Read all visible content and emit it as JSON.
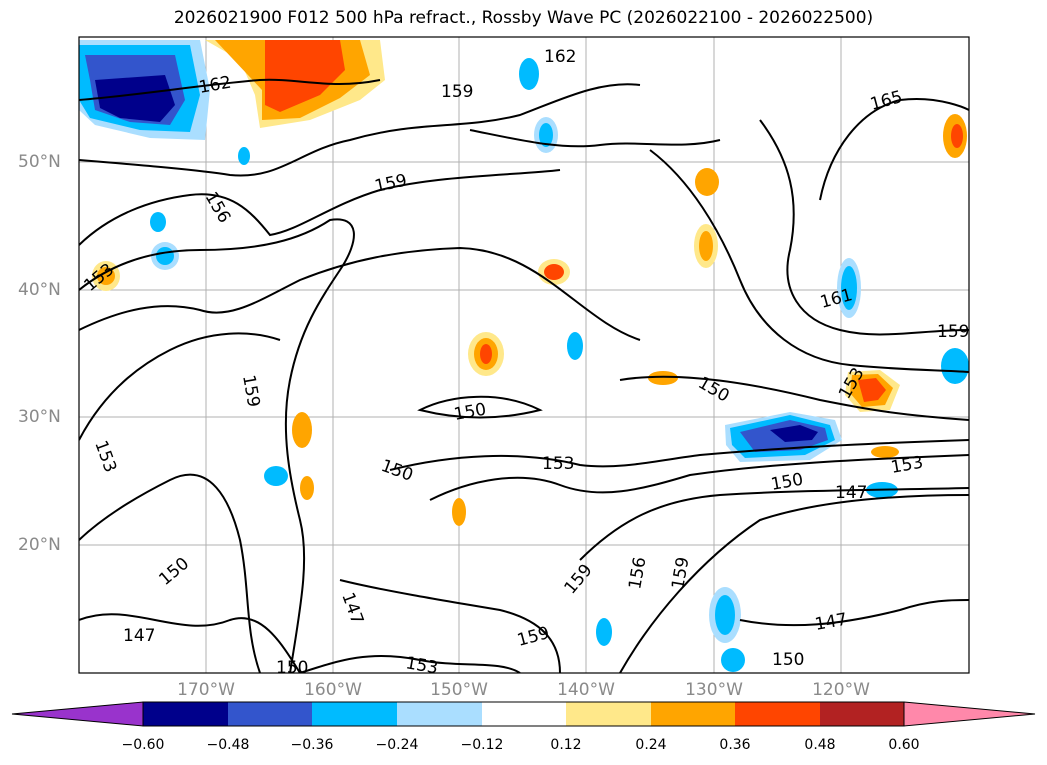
{
  "title": "2026021900 F012 500 hPa refract., Rossby Wave PC (2026022100 - 2026022500)",
  "lat_labels": [
    "50°N",
    "40°N",
    "30°N",
    "20°N"
  ],
  "lon_labels": [
    "170°W",
    "160°W",
    "150°W",
    "140°W",
    "130°W",
    "120°W"
  ],
  "contour_labels": [
    "162",
    "159",
    "162",
    "165",
    "156",
    "159",
    "153",
    "161",
    "159",
    "159",
    "153",
    "150",
    "150",
    "153",
    "153",
    "150",
    "147",
    "150",
    "147",
    "159",
    "156",
    "159",
    "159",
    "147",
    "153",
    "150",
    "147",
    "150",
    "153",
    "150"
  ],
  "colorbar": {
    "colors": [
      "#9933cc",
      "#00008b",
      "#3355cc",
      "#00bbff",
      "#aadeff",
      "#ffffff",
      "#ffe88a",
      "#ffa500",
      "#ff4500",
      "#b22222",
      "#ff88aa"
    ],
    "tick_labels": [
      "−0.60",
      "−0.48",
      "−0.36",
      "−0.24",
      "−0.12",
      "0.12",
      "0.24",
      "0.36",
      "0.48",
      "0.60"
    ]
  }
}
